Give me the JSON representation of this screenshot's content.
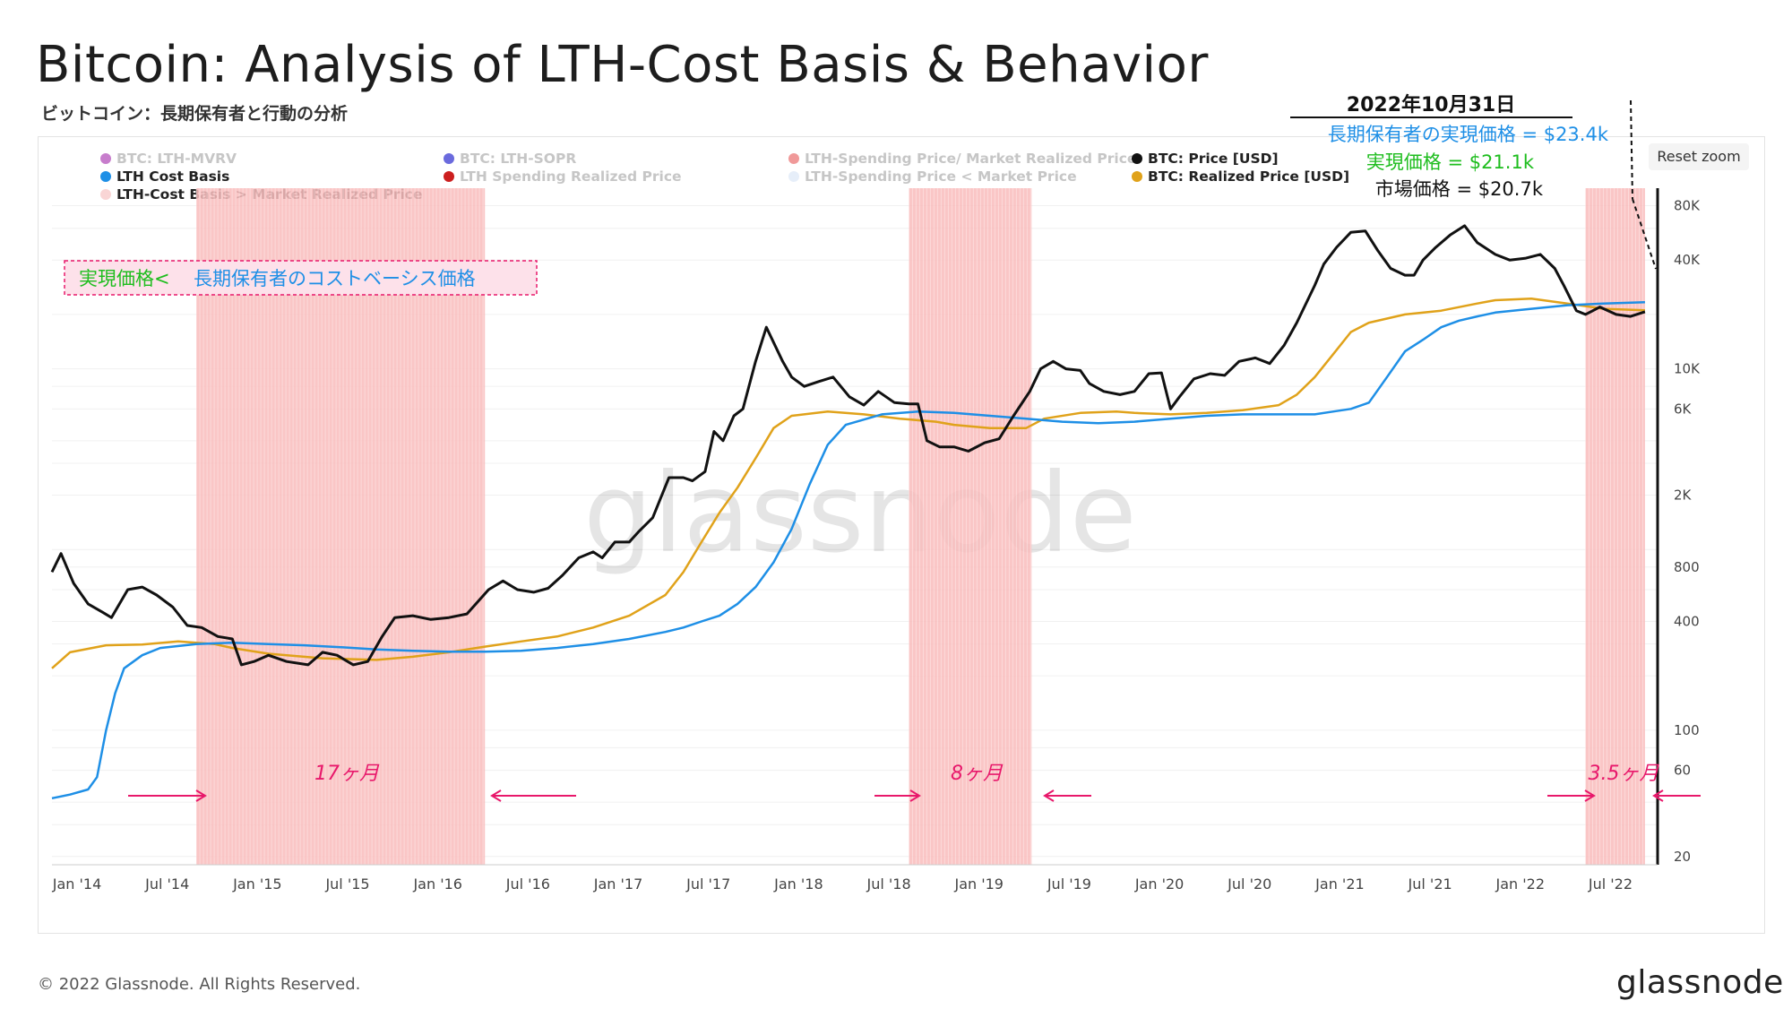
{
  "header": {
    "title": "Bitcoin: Analysis of LTH-Cost Basis &  Behavior",
    "subtitle": "ビットコイン：長期保有者と行動の分析",
    "reset_zoom": "Reset zoom"
  },
  "legend": [
    {
      "label": "BTC: LTH-MVRV",
      "color": "#c77dcc",
      "active": false
    },
    {
      "label": "LTH Cost Basis",
      "color": "#1e8fe6",
      "active": true
    },
    {
      "label": "LTH-Cost Basis > Market Realized Price",
      "color": "#f9d5d5",
      "active": true
    },
    {
      "label": "BTC: LTH-SOPR",
      "color": "#6a6add",
      "active": false
    },
    {
      "label": "LTH Spending Realized Price",
      "color": "#cc1f1f",
      "active": false
    },
    {
      "label": "LTH-Spending Price/ Market Realized Price",
      "color": "#f09999",
      "active": false
    },
    {
      "label": "LTH-Spending Price < Market Price",
      "color": "#e6eef9",
      "active": false
    },
    {
      "label": "BTC: Price [USD]",
      "color": "#111111",
      "active": true
    },
    {
      "label": "BTC: Realized Price [USD]",
      "color": "#e0a21a",
      "active": true
    }
  ],
  "annotation": {
    "date": "2022年10月31日",
    "lth_realized": "長期保有者の実現価格 = $23.4k",
    "realized": "実現価格 = $21.1k",
    "market": "市場価格 = $20.7k",
    "box_left": "実現価格<",
    "box_right": "長期保有者のコストベーシス価格"
  },
  "periods": [
    "17ヶ月",
    "8ヶ月",
    "3.5ヶ月"
  ],
  "watermark": "glassnode",
  "footer": {
    "copyright": "© 2022 Glassnode. All Rights Reserved.",
    "brand": "glassnode"
  },
  "colors": {
    "price": "#111111",
    "realized": "#e0a21a",
    "lth": "#1e8fe6",
    "shade": "#f9bcbc",
    "accent_pink": "#e8186b",
    "green": "#1ebd1e",
    "blue_text": "#1e8fe6"
  },
  "chart_data": {
    "type": "line",
    "y_scale": "log",
    "y_ticks": [
      20,
      60,
      100,
      400,
      800,
      2000,
      6000,
      10000,
      40000,
      80000
    ],
    "y_tick_labels": [
      "20",
      "60",
      "100",
      "400",
      "800",
      "2K",
      "6K",
      "10K",
      "40K",
      "80K"
    ],
    "x_ticks": [
      "Jan '14",
      "Jul '14",
      "Jan '15",
      "Jul '15",
      "Jan '16",
      "Jul '16",
      "Jan '17",
      "Jul '17",
      "Jan '18",
      "Jul '18",
      "Jan '19",
      "Jul '19",
      "Jan '20",
      "Jul '20",
      "Jan '21",
      "Jul '21",
      "Jan '22",
      "Jul '22"
    ],
    "x_range": [
      2014.0,
      2022.9
    ],
    "y_range": [
      18,
      100000
    ],
    "shaded_periods": [
      [
        2014.8,
        2016.4
      ],
      [
        2018.75,
        2019.43
      ],
      [
        2022.5,
        2022.83
      ]
    ],
    "series": [
      {
        "name": "BTC: Price [USD]",
        "x": [
          2014.0,
          2014.05,
          2014.12,
          2014.2,
          2014.28,
          2014.33,
          2014.42,
          2014.5,
          2014.58,
          2014.67,
          2014.75,
          2014.83,
          2014.92,
          2015.0,
          2015.05,
          2015.12,
          2015.2,
          2015.3,
          2015.42,
          2015.5,
          2015.58,
          2015.67,
          2015.75,
          2015.83,
          2015.9,
          2016.0,
          2016.1,
          2016.2,
          2016.3,
          2016.42,
          2016.5,
          2016.58,
          2016.67,
          2016.75,
          2016.83,
          2016.92,
          2017.0,
          2017.05,
          2017.12,
          2017.2,
          2017.25,
          2017.33,
          2017.42,
          2017.5,
          2017.55,
          2017.62,
          2017.67,
          2017.72,
          2017.78,
          2017.83,
          2017.9,
          2017.96,
          2018.0,
          2018.05,
          2018.1,
          2018.17,
          2018.25,
          2018.33,
          2018.42,
          2018.5,
          2018.58,
          2018.67,
          2018.75,
          2018.8,
          2018.85,
          2018.92,
          2019.0,
          2019.08,
          2019.17,
          2019.25,
          2019.33,
          2019.42,
          2019.48,
          2019.55,
          2019.62,
          2019.7,
          2019.75,
          2019.83,
          2019.92,
          2020.0,
          2020.08,
          2020.15,
          2020.2,
          2020.25,
          2020.33,
          2020.42,
          2020.5,
          2020.58,
          2020.67,
          2020.75,
          2020.83,
          2020.9,
          2021.0,
          2021.05,
          2021.12,
          2021.2,
          2021.28,
          2021.35,
          2021.42,
          2021.5,
          2021.55,
          2021.6,
          2021.67,
          2021.75,
          2021.83,
          2021.9,
          2022.0,
          2022.08,
          2022.17,
          2022.25,
          2022.33,
          2022.38,
          2022.45,
          2022.5,
          2022.58,
          2022.67,
          2022.75,
          2022.83
        ],
        "y": [
          750,
          950,
          650,
          500,
          450,
          420,
          600,
          620,
          560,
          480,
          380,
          370,
          330,
          320,
          230,
          240,
          260,
          240,
          230,
          270,
          260,
          230,
          240,
          330,
          420,
          430,
          410,
          420,
          440,
          600,
          670,
          600,
          580,
          610,
          720,
          900,
          970,
          900,
          1100,
          1100,
          1250,
          1500,
          2500,
          2500,
          2400,
          2700,
          4500,
          4000,
          5500,
          6000,
          11000,
          17000,
          14000,
          11000,
          9000,
          8000,
          8500,
          9000,
          7000,
          6300,
          7500,
          6500,
          6400,
          6400,
          4000,
          3700,
          3700,
          3500,
          3900,
          4100,
          5500,
          7500,
          10000,
          11000,
          10000,
          9800,
          8300,
          7500,
          7200,
          7500,
          9400,
          9500,
          6000,
          7000,
          8800,
          9400,
          9200,
          11000,
          11500,
          10700,
          13500,
          18000,
          29000,
          38000,
          47000,
          57000,
          58000,
          45000,
          36000,
          33000,
          33000,
          40000,
          47000,
          55000,
          62000,
          50000,
          43000,
          40000,
          41000,
          43000,
          36000,
          29000,
          21000,
          20000,
          22000,
          20000,
          19500,
          20700
        ]
      },
      {
        "name": "BTC: Realized Price [USD]",
        "x": [
          2014.0,
          2014.1,
          2014.3,
          2014.5,
          2014.7,
          2014.9,
          2015.0,
          2015.2,
          2015.5,
          2015.8,
          2016.0,
          2016.2,
          2016.4,
          2016.6,
          2016.8,
          2017.0,
          2017.2,
          2017.4,
          2017.5,
          2017.6,
          2017.7,
          2017.8,
          2017.9,
          2018.0,
          2018.1,
          2018.3,
          2018.5,
          2018.7,
          2018.9,
          2019.0,
          2019.2,
          2019.4,
          2019.5,
          2019.7,
          2019.9,
          2020.0,
          2020.2,
          2020.4,
          2020.6,
          2020.8,
          2020.9,
          2021.0,
          2021.1,
          2021.2,
          2021.3,
          2021.5,
          2021.7,
          2021.9,
          2022.0,
          2022.2,
          2022.4,
          2022.6,
          2022.83
        ],
        "y": [
          220,
          270,
          295,
          298,
          310,
          300,
          285,
          265,
          250,
          245,
          255,
          270,
          290,
          310,
          330,
          370,
          430,
          560,
          750,
          1100,
          1600,
          2200,
          3200,
          4700,
          5500,
          5800,
          5600,
          5300,
          5100,
          4900,
          4700,
          4700,
          5300,
          5700,
          5800,
          5700,
          5600,
          5700,
          5900,
          6300,
          7200,
          9000,
          12000,
          16000,
          18000,
          20000,
          21000,
          23000,
          24000,
          24500,
          23000,
          21500,
          21100
        ]
      },
      {
        "name": "LTH Cost Basis",
        "x": [
          2014.0,
          2014.1,
          2014.2,
          2014.25,
          2014.3,
          2014.35,
          2014.4,
          2014.5,
          2014.6,
          2014.8,
          2015.0,
          2015.2,
          2015.4,
          2015.6,
          2015.8,
          2016.0,
          2016.2,
          2016.4,
          2016.6,
          2016.8,
          2017.0,
          2017.2,
          2017.4,
          2017.5,
          2017.6,
          2017.7,
          2017.8,
          2017.9,
          2018.0,
          2018.1,
          2018.2,
          2018.3,
          2018.4,
          2018.6,
          2018.8,
          2019.0,
          2019.2,
          2019.4,
          2019.6,
          2019.8,
          2020.0,
          2020.2,
          2020.4,
          2020.6,
          2020.8,
          2021.0,
          2021.1,
          2021.2,
          2021.3,
          2021.4,
          2021.5,
          2021.6,
          2021.7,
          2021.8,
          2021.9,
          2022.0,
          2022.2,
          2022.4,
          2022.6,
          2022.83
        ],
        "y": [
          42,
          44,
          47,
          55,
          100,
          160,
          220,
          260,
          285,
          300,
          305,
          300,
          295,
          288,
          280,
          275,
          272,
          272,
          275,
          285,
          300,
          320,
          350,
          370,
          400,
          430,
          500,
          620,
          850,
          1300,
          2300,
          3800,
          4900,
          5600,
          5800,
          5700,
          5500,
          5300,
          5100,
          5000,
          5100,
          5300,
          5500,
          5600,
          5600,
          5600,
          5800,
          6000,
          6500,
          9000,
          12500,
          14500,
          17000,
          18500,
          19500,
          20500,
          21500,
          22500,
          23000,
          23400
        ]
      }
    ]
  }
}
